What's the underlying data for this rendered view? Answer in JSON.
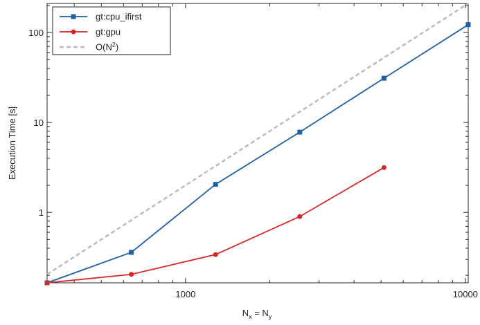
{
  "chart_data": {
    "type": "line",
    "xlabel": {
      "base": "N",
      "sub1": "x",
      "mid": " = N",
      "sub2": "y"
    },
    "ylabel": "Execution Time [s]",
    "xscale": "log",
    "yscale": "log",
    "xlim": [
      320,
      10240
    ],
    "ylim": [
      0.165,
      210
    ],
    "x_ticks": [
      {
        "value": 1000,
        "label": "1000"
      },
      {
        "value": 10000,
        "label": "10000"
      }
    ],
    "y_ticks": [
      {
        "value": 1,
        "label": "1"
      },
      {
        "value": 10,
        "label": "10"
      },
      {
        "value": 100,
        "label": "100"
      }
    ],
    "legend_position": "top-left",
    "series": [
      {
        "name": "gt:cpu_ifirst",
        "color": "#1f5fa5",
        "marker": "square",
        "style": "solid",
        "x": [
          320,
          640,
          1280,
          2560,
          5120,
          10240
        ],
        "y": [
          0.165,
          0.36,
          2.05,
          7.8,
          31,
          122
        ]
      },
      {
        "name": "gt:gpu",
        "color": "#d62728",
        "marker": "circle",
        "style": "solid",
        "x": [
          320,
          640,
          1280,
          2560,
          5120
        ],
        "y": [
          0.165,
          0.205,
          0.34,
          0.9,
          3.15
        ]
      },
      {
        "name": "O(N",
        "name_sup": "2",
        "name_end": ")",
        "color": "#bbbbbb",
        "marker": "none",
        "style": "dashed",
        "x": [
          320,
          10240
        ],
        "y": [
          0.205,
          210
        ]
      }
    ]
  }
}
